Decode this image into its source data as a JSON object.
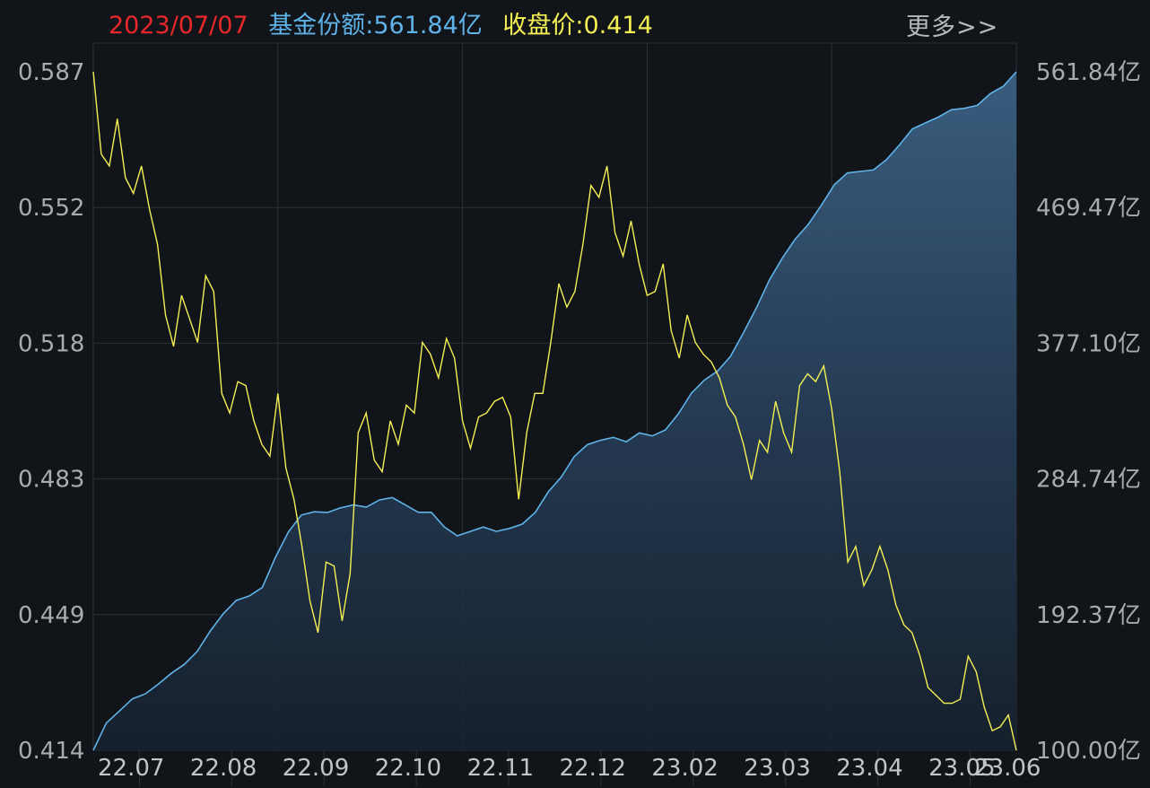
{
  "header": {
    "date": "2023/07/07",
    "fund_share": "基金份额:561.84亿",
    "close_price": "收盘价:0.414",
    "more": "更多>>"
  },
  "colors": {
    "background": "#111419",
    "grid": "#2c3037",
    "price_line": "#f4f054",
    "share_line": "#5fb3e8",
    "date": "#e8282b"
  },
  "chart_data": {
    "type": "line",
    "x_tick_labels": [
      "22.07",
      "22.08",
      "22.09",
      "22.10",
      "22.11",
      "22.12",
      "23.02",
      "23.03",
      "23.04",
      "23.05",
      "23.06"
    ],
    "left_axis": {
      "ticks": [
        "0.587",
        "0.552",
        "0.518",
        "0.483",
        "0.449",
        "0.414"
      ],
      "ylim": [
        0.414,
        0.587
      ]
    },
    "right_axis": {
      "ticks": [
        "561.84亿",
        "469.47亿",
        "377.10亿",
        "284.74亿",
        "192.37亿",
        "100.00亿"
      ],
      "ylim": [
        100.0,
        561.84
      ]
    },
    "series": [
      {
        "axis": "left",
        "style": "line",
        "values": [
          0.587,
          0.566,
          0.563,
          0.575,
          0.56,
          0.556,
          0.563,
          0.552,
          0.543,
          0.525,
          0.517,
          0.53,
          0.524,
          0.518,
          0.535,
          0.531,
          0.505,
          0.5,
          0.508,
          0.507,
          0.498,
          0.492,
          0.489,
          0.505,
          0.486,
          0.478,
          0.466,
          0.452,
          0.444,
          0.462,
          0.461,
          0.447,
          0.459,
          0.495,
          0.5,
          0.488,
          0.485,
          0.498,
          0.492,
          0.502,
          0.5,
          0.518,
          0.515,
          0.509,
          0.519,
          0.514,
          0.498,
          0.491,
          0.499,
          0.5,
          0.503,
          0.504,
          0.499,
          0.478,
          0.495,
          0.505,
          0.505,
          0.518,
          0.533,
          0.527,
          0.531,
          0.543,
          0.558,
          0.555,
          0.563,
          0.546,
          0.54,
          0.549,
          0.538,
          0.53,
          0.531,
          0.538,
          0.521,
          0.514,
          0.525,
          0.518,
          0.515,
          0.513,
          0.509,
          0.502,
          0.499,
          0.492,
          0.483,
          0.493,
          0.49,
          0.503,
          0.495,
          0.49,
          0.507,
          0.51,
          0.508,
          0.512,
          0.501,
          0.485,
          0.462,
          0.466,
          0.456,
          0.46,
          0.466,
          0.46,
          0.451,
          0.446,
          0.444,
          0.438,
          0.43,
          0.428,
          0.426,
          0.426,
          0.427,
          0.438,
          0.434,
          0.425,
          0.419,
          0.42,
          0.423,
          0.414
        ]
      },
      {
        "axis": "right",
        "style": "area",
        "values": [
          100.0,
          118.5,
          126.7,
          135.0,
          138.4,
          145.0,
          152.4,
          158.5,
          167.3,
          181.2,
          193.0,
          202.0,
          205.1,
          210.8,
          231.2,
          248.5,
          260.1,
          262.4,
          261.8,
          265.0,
          267.0,
          265.5,
          270.4,
          272.0,
          267.0,
          262.0,
          262.0,
          252.0,
          246.0,
          249.0,
          252.0,
          249.0,
          251.0,
          254.0,
          262.0,
          276.0,
          286.0,
          300.0,
          308.0,
          311.0,
          313.0,
          310.0,
          316.0,
          314.0,
          318.0,
          329.0,
          343.0,
          352.0,
          358.0,
          368.0,
          384.0,
          401.0,
          420.0,
          435.0,
          448.0,
          458.0,
          471.0,
          485.0,
          493.0,
          494.0,
          495.0,
          502.0,
          512.0,
          523.0,
          527.0,
          531.0,
          536.0,
          537.0,
          539.0,
          547.0,
          552.0,
          561.84
        ]
      }
    ]
  }
}
